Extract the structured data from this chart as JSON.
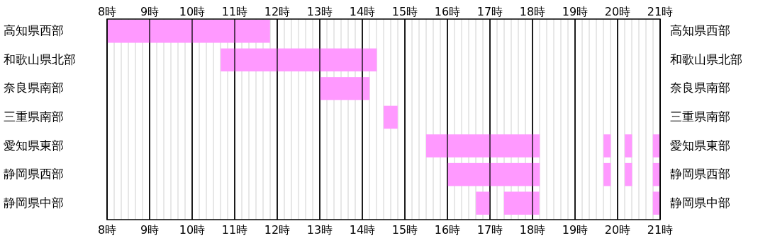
{
  "chart_data": {
    "type": "bar",
    "orientation": "horizontal",
    "categories": [
      "高知県西部",
      "和歌山県北部",
      "奈良県南部",
      "三重県南部",
      "愛知県東部",
      "静岡県西部",
      "静岡県中部"
    ],
    "y2_categories": [
      "高知県西部",
      "和歌山県北部",
      "奈良県南部",
      "三重県南部",
      "愛知県東部",
      "静岡県西部",
      "静岡県中部"
    ],
    "series": [
      {
        "color": "#ff99ff",
        "base": [
          8,
          10.67,
          13,
          14.5,
          15.5,
          16,
          16.67
        ],
        "values": [
          3.83,
          3.67,
          1.17,
          0.33,
          2.67,
          2.17,
          0.33
        ]
      },
      {
        "color": "#ff99ff",
        "base": [
          null,
          null,
          null,
          null,
          19.67,
          19.67,
          17.33
        ],
        "values": [
          null,
          null,
          null,
          null,
          0.17,
          0.17,
          0.83
        ]
      },
      {
        "color": "#ff99ff",
        "base": [
          null,
          null,
          null,
          null,
          20.17,
          20.17,
          20.83
        ],
        "values": [
          null,
          null,
          null,
          null,
          0.17,
          0.17,
          0.17
        ]
      },
      {
        "color": "#ff99ff",
        "base": [
          null,
          null,
          null,
          null,
          20.83,
          20.83,
          null
        ],
        "values": [
          null,
          null,
          null,
          null,
          0.17,
          0.17,
          null
        ]
      }
    ],
    "xlim": [
      8,
      21
    ],
    "xticks": [
      {
        "value": 8,
        "label": "8時"
      },
      {
        "value": 9,
        "label": "9時"
      },
      {
        "value": 10,
        "label": "10時"
      },
      {
        "value": 11,
        "label": "11時"
      },
      {
        "value": 12,
        "label": "12時"
      },
      {
        "value": 13,
        "label": "13時"
      },
      {
        "value": 14,
        "label": "14時"
      },
      {
        "value": 15,
        "label": "15時"
      },
      {
        "value": 16,
        "label": "16時"
      },
      {
        "value": 17,
        "label": "17時"
      },
      {
        "value": 18,
        "label": "18時"
      },
      {
        "value": 19,
        "label": "19時"
      },
      {
        "value": 20,
        "label": "20時"
      },
      {
        "value": 21,
        "label": "21時"
      }
    ],
    "x2lim": [
      8,
      21
    ],
    "x2ticks": [
      {
        "value": 8,
        "label": "8時"
      },
      {
        "value": 9,
        "label": "9時"
      },
      {
        "value": 10,
        "label": "10時"
      },
      {
        "value": 11,
        "label": "11時"
      },
      {
        "value": 12,
        "label": "12時"
      },
      {
        "value": 13,
        "label": "13時"
      },
      {
        "value": 14,
        "label": "14時"
      },
      {
        "value": 15,
        "label": "15時"
      },
      {
        "value": 16,
        "label": "16時"
      },
      {
        "value": 17,
        "label": "17時"
      },
      {
        "value": 18,
        "label": "18時"
      },
      {
        "value": 19,
        "label": "19時"
      },
      {
        "value": 20,
        "label": "20時"
      },
      {
        "value": 21,
        "label": "21時"
      }
    ],
    "grid": "x"
  }
}
